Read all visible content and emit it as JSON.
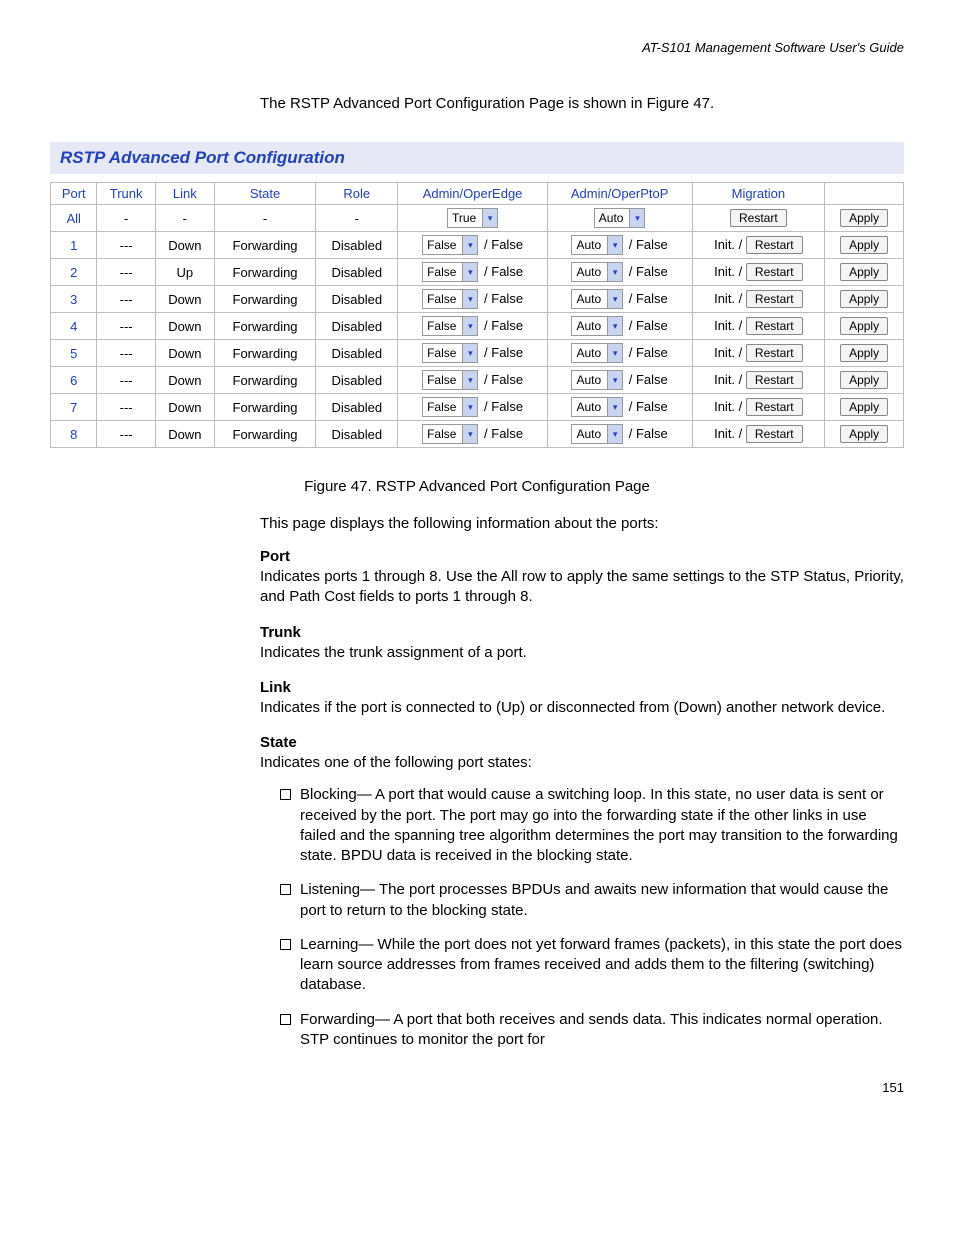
{
  "header": "AT-S101 Management Software User's Guide",
  "intro": "The RSTP Advanced Port Configuration Page is shown in Figure 47.",
  "titleBar": "RSTP Advanced Port Configuration",
  "columns": [
    "Port",
    "Trunk",
    "Link",
    "State",
    "Role",
    "Admin/OperEdge",
    "Admin/OperPtoP",
    "Migration",
    ""
  ],
  "allRow": {
    "port": "All",
    "trunk": "-",
    "link": "-",
    "state": "-",
    "role": "-",
    "edgeSelect": "True",
    "ptopSelect": "Auto",
    "restart": "Restart",
    "apply": "Apply"
  },
  "rows": [
    {
      "port": "1",
      "trunk": "---",
      "link": "Down",
      "state": "Forwarding",
      "role": "Disabled",
      "edgeSel": "False",
      "edgeOper": "/ False",
      "ptopSel": "Auto",
      "ptopOper": "/ False",
      "init": "Init. /",
      "restart": "Restart",
      "apply": "Apply"
    },
    {
      "port": "2",
      "trunk": "---",
      "link": "Up",
      "state": "Forwarding",
      "role": "Disabled",
      "edgeSel": "False",
      "edgeOper": "/ False",
      "ptopSel": "Auto",
      "ptopOper": "/ False",
      "init": "Init. /",
      "restart": "Restart",
      "apply": "Apply"
    },
    {
      "port": "3",
      "trunk": "---",
      "link": "Down",
      "state": "Forwarding",
      "role": "Disabled",
      "edgeSel": "False",
      "edgeOper": "/ False",
      "ptopSel": "Auto",
      "ptopOper": "/ False",
      "init": "Init. /",
      "restart": "Restart",
      "apply": "Apply"
    },
    {
      "port": "4",
      "trunk": "---",
      "link": "Down",
      "state": "Forwarding",
      "role": "Disabled",
      "edgeSel": "False",
      "edgeOper": "/ False",
      "ptopSel": "Auto",
      "ptopOper": "/ False",
      "init": "Init. /",
      "restart": "Restart",
      "apply": "Apply"
    },
    {
      "port": "5",
      "trunk": "---",
      "link": "Down",
      "state": "Forwarding",
      "role": "Disabled",
      "edgeSel": "False",
      "edgeOper": "/ False",
      "ptopSel": "Auto",
      "ptopOper": "/ False",
      "init": "Init. /",
      "restart": "Restart",
      "apply": "Apply"
    },
    {
      "port": "6",
      "trunk": "---",
      "link": "Down",
      "state": "Forwarding",
      "role": "Disabled",
      "edgeSel": "False",
      "edgeOper": "/ False",
      "ptopSel": "Auto",
      "ptopOper": "/ False",
      "init": "Init. /",
      "restart": "Restart",
      "apply": "Apply"
    },
    {
      "port": "7",
      "trunk": "---",
      "link": "Down",
      "state": "Forwarding",
      "role": "Disabled",
      "edgeSel": "False",
      "edgeOper": "/ False",
      "ptopSel": "Auto",
      "ptopOper": "/ False",
      "init": "Init. /",
      "restart": "Restart",
      "apply": "Apply"
    },
    {
      "port": "8",
      "trunk": "---",
      "link": "Down",
      "state": "Forwarding",
      "role": "Disabled",
      "edgeSel": "False",
      "edgeOper": "/ False",
      "ptopSel": "Auto",
      "ptopOper": "/ False",
      "init": "Init. /",
      "restart": "Restart",
      "apply": "Apply"
    }
  ],
  "caption": "Figure 47. RSTP Advanced Port Configuration Page",
  "desc": "This page displays the following information about the ports:",
  "fields": {
    "port": {
      "label": "Port",
      "text": "Indicates ports 1 through 8. Use the All row to apply the same settings to the STP Status, Priority, and Path Cost fields to ports 1 through 8."
    },
    "trunk": {
      "label": "Trunk",
      "text": "Indicates the trunk assignment of a port."
    },
    "link": {
      "label": "Link",
      "text": "Indicates if the port is connected to (Up) or disconnected from (Down) another network device."
    },
    "state": {
      "label": "State",
      "text": "Indicates one of the following port states:"
    }
  },
  "states": [
    "Blocking— A port that would cause a switching loop. In this state, no user data is sent or received by the port. The port may go into the forwarding state if the other links in use failed and the spanning tree algorithm determines the port may transition to the forwarding state. BPDU data is received in the blocking state.",
    "Listening— The port processes BPDUs and awaits new information that would cause the port to return to the blocking state.",
    "Learning— While the port does not yet forward frames (packets), in this state the port does learn source addresses from frames received and adds them to the filtering (switching) database.",
    "Forwarding— A port that both receives and sends data. This indicates normal operation. STP continues to monitor the port for"
  ],
  "pageNum": "151"
}
